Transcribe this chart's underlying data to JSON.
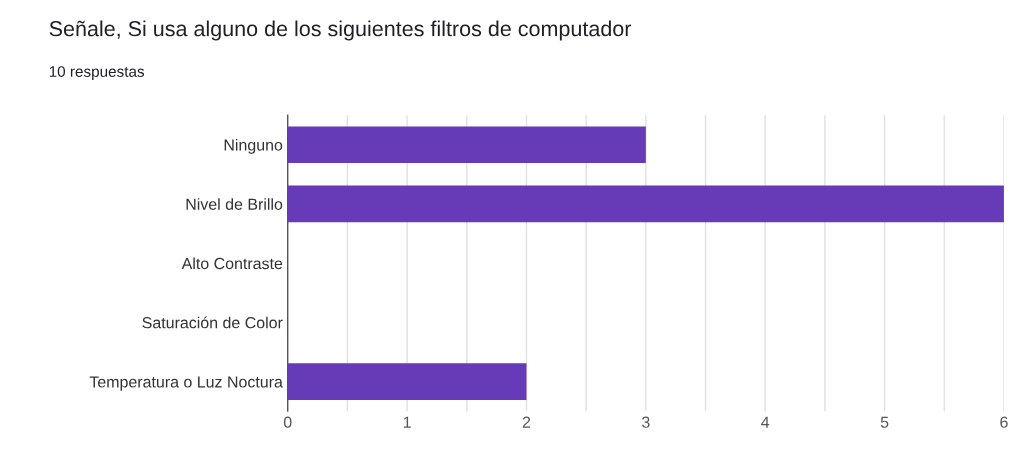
{
  "chart_data": {
    "type": "bar",
    "orientation": "horizontal",
    "title": "Señale, Si usa alguno de los siguientes filtros de computador",
    "subtitle": "10 respuestas",
    "categories": [
      "Ninguno",
      "Nivel de Brillo",
      "Alto Contraste",
      "Saturación de Color",
      "Temperatura o Luz Noctura"
    ],
    "values": [
      3,
      6,
      0,
      0,
      2
    ],
    "color": "#673ab7",
    "xlim": [
      0,
      6
    ],
    "xticks": [
      0,
      {
        "value": 0.5,
        "label": null
      },
      1,
      {
        "value": 1.5,
        "label": null
      },
      2,
      {
        "value": 2.5,
        "label": null
      },
      3,
      {
        "value": 3.5,
        "label": null
      },
      4,
      {
        "value": 4.5,
        "label": null
      },
      5,
      {
        "value": 5.5,
        "label": null
      },
      6
    ],
    "grid": "x"
  }
}
